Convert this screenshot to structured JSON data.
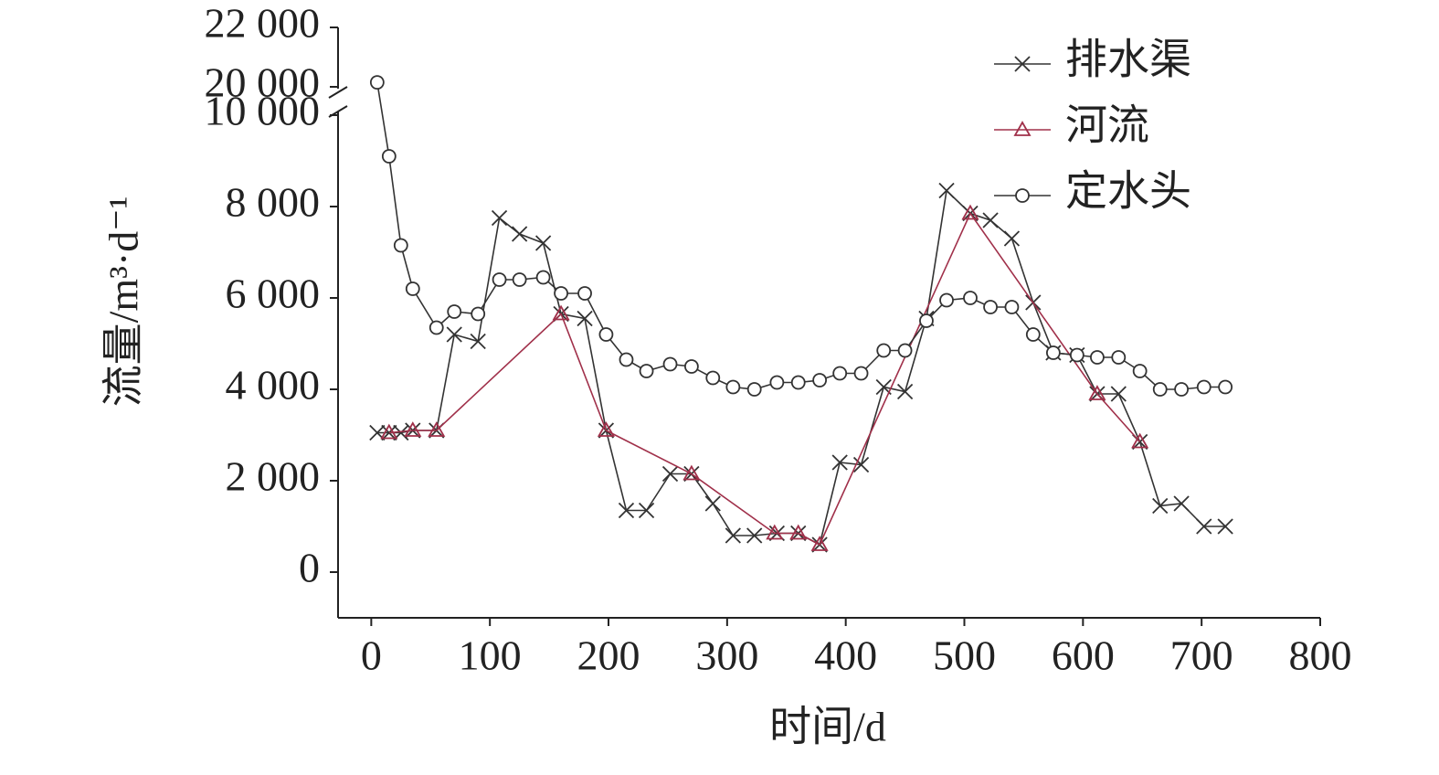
{
  "chart_data": {
    "type": "line",
    "xlabel": "时间/d",
    "ylabel": "流量/m³·d⁻¹",
    "xlim": [
      -28,
      800
    ],
    "xticks": [
      0,
      100,
      200,
      300,
      400,
      500,
      600,
      700,
      800
    ],
    "ylim": [
      -1000,
      22000
    ],
    "ybreak": [
      10000,
      20000
    ],
    "yticks": [
      0,
      {
        "value": 2000,
        "label": "2 000"
      },
      {
        "value": 4000,
        "label": "4 000"
      },
      {
        "value": 6000,
        "label": "6 000"
      },
      {
        "value": 8000,
        "label": "8 000"
      },
      {
        "value": 10000,
        "label": "10 000"
      },
      {
        "value": 20000,
        "label": "20 000"
      },
      {
        "value": 22000,
        "label": "22 000"
      }
    ],
    "legend": "upper right",
    "series": [
      {
        "name": "排水渠",
        "color": "#333333",
        "marker": "x",
        "x": [
          5,
          15,
          25,
          35,
          55,
          70,
          90,
          108,
          125,
          145,
          160,
          180,
          198,
          215,
          232,
          252,
          270,
          288,
          305,
          323,
          342,
          360,
          378,
          395,
          413,
          432,
          450,
          468,
          485,
          505,
          522,
          540,
          558,
          575,
          595,
          612,
          630,
          648,
          665,
          683,
          702,
          720
        ],
        "values": [
          3050,
          3050,
          3050,
          3100,
          3100,
          5200,
          5050,
          7750,
          7400,
          7200,
          5650,
          5550,
          3100,
          1350,
          1350,
          2150,
          2150,
          1500,
          800,
          800,
          850,
          850,
          600,
          2400,
          2350,
          4050,
          3950,
          5550,
          8350,
          7850,
          7700,
          7300,
          5900,
          4800,
          4750,
          3900,
          3900,
          2850,
          1450,
          1500,
          1000,
          1000
        ]
      },
      {
        "name": "河流",
        "color": "#a0304a",
        "marker": "triangle",
        "x": [
          15,
          35,
          55,
          160,
          198,
          270,
          340,
          360,
          378,
          505,
          612,
          648
        ],
        "values": [
          3050,
          3100,
          3100,
          5650,
          3100,
          2150,
          850,
          850,
          600,
          7850,
          3900,
          2850
        ]
      },
      {
        "name": "定水头",
        "color": "#333333",
        "marker": "circle",
        "x": [
          5,
          15,
          25,
          35,
          55,
          70,
          90,
          108,
          125,
          145,
          160,
          180,
          198,
          215,
          232,
          252,
          270,
          288,
          305,
          323,
          342,
          360,
          378,
          395,
          413,
          432,
          450,
          468,
          485,
          505,
          522,
          540,
          558,
          575,
          595,
          612,
          630,
          648,
          665,
          683,
          702,
          720
        ],
        "values": [
          20150,
          9100,
          7150,
          6200,
          5350,
          5700,
          5650,
          6400,
          6400,
          6450,
          6100,
          6100,
          5200,
          4650,
          4400,
          4550,
          4500,
          4250,
          4050,
          4000,
          4150,
          4150,
          4200,
          4350,
          4350,
          4850,
          4850,
          5500,
          5950,
          6000,
          5800,
          5800,
          5200,
          4800,
          4750,
          4700,
          4700,
          4400,
          4000,
          4000,
          4050,
          4050
        ]
      }
    ]
  }
}
